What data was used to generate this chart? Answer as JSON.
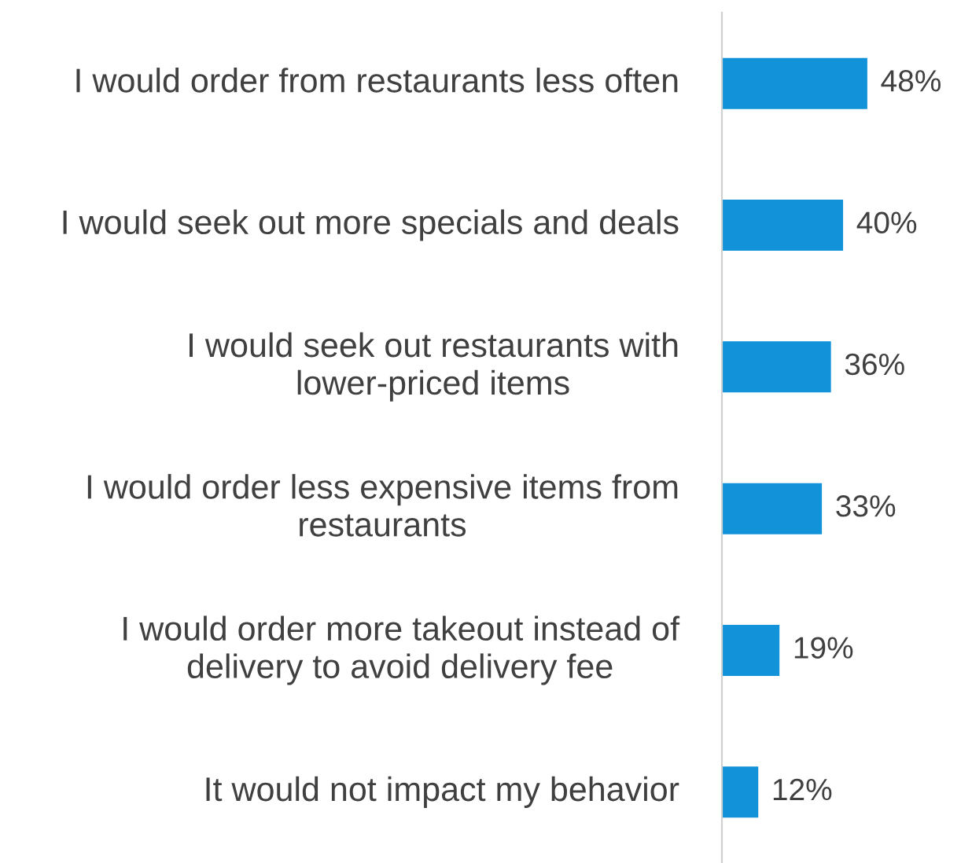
{
  "chart_data": {
    "type": "bar",
    "orientation": "horizontal",
    "categories": [
      "I would order from restaurants less often",
      "I would seek out more specials and deals",
      "I would seek out restaurants with lower-priced items",
      "I would order less expensive items from restaurants",
      "I would order more takeout instead of delivery to avoid delivery fee",
      "It would not impact my behavior"
    ],
    "values": [
      48,
      40,
      36,
      33,
      19,
      12
    ],
    "value_labels": [
      "48%",
      "40%",
      "36%",
      "33%",
      "19%",
      "12%"
    ],
    "color": "#1192d9"
  }
}
